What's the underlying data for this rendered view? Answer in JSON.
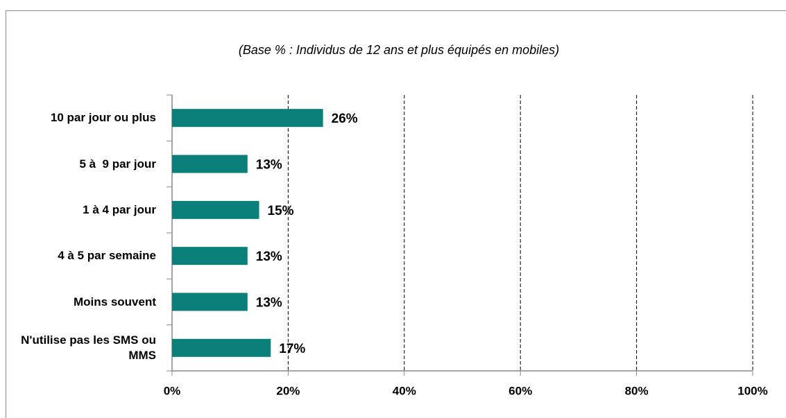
{
  "chart_data": {
    "type": "bar",
    "orientation": "horizontal",
    "subtitle": "(Base % : Individus de 12 ans et plus équipés en mobiles)",
    "categories": [
      "10 par jour ou plus",
      "5 à  9 par jour",
      "1 à 4 par jour",
      "4 à 5 par semaine",
      "Moins souvent",
      "N'utilise pas les SMS ou MMS"
    ],
    "values": [
      26,
      13,
      15,
      13,
      13,
      17
    ],
    "value_labels": [
      "26%",
      "13%",
      "15%",
      "13%",
      "13%",
      "17%"
    ],
    "color": "#0b807b",
    "xlim": [
      0,
      100
    ],
    "xticks": [
      {
        "value": 0,
        "label": "0%"
      },
      {
        "value": 20,
        "label": "20%"
      },
      {
        "value": 40,
        "label": "40%"
      },
      {
        "value": 60,
        "label": "60%"
      },
      {
        "value": 80,
        "label": "80%"
      },
      {
        "value": 100,
        "label": "100%"
      }
    ],
    "grid": true
  }
}
